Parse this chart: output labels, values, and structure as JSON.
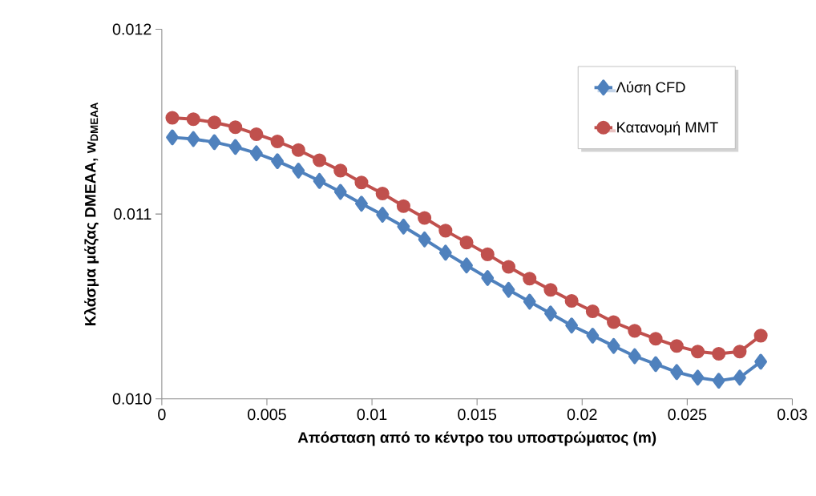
{
  "chart_data": {
    "type": "line",
    "xlabel": "Απόσταση από το κέντρο του υποστρώματος (m)",
    "ylabel": "Κλάσμα μάζας DMEAA, w$_{DMEAA}$",
    "x": [
      0.0005,
      0.0015,
      0.0025,
      0.0035,
      0.0045,
      0.0055,
      0.0065,
      0.0075,
      0.0085,
      0.0095,
      0.0105,
      0.0115,
      0.0125,
      0.0135,
      0.0145,
      0.0155,
      0.0165,
      0.0175,
      0.0185,
      0.0195,
      0.0205,
      0.0215,
      0.0225,
      0.0235,
      0.0245,
      0.0255,
      0.0265,
      0.0275,
      0.0285
    ],
    "series": [
      {
        "name": "Λύση CFD",
        "color": "#4f81bd",
        "marker": "diamond",
        "values": [
          0.011415,
          0.011406,
          0.011389,
          0.011363,
          0.011329,
          0.011286,
          0.011235,
          0.011179,
          0.01112,
          0.011056,
          0.010996,
          0.010932,
          0.010863,
          0.010791,
          0.010722,
          0.010654,
          0.01059,
          0.010526,
          0.010462,
          0.010397,
          0.010342,
          0.010286,
          0.010231,
          0.010188,
          0.010145,
          0.010115,
          0.010098,
          0.010115,
          0.010201
        ]
      },
      {
        "name": "Κατανομή MMT",
        "color": "#c0504d",
        "marker": "circle",
        "values": [
          0.011521,
          0.011513,
          0.011496,
          0.01147,
          0.011432,
          0.011393,
          0.011346,
          0.011291,
          0.011235,
          0.011171,
          0.011111,
          0.011043,
          0.010979,
          0.01091,
          0.010846,
          0.010782,
          0.010714,
          0.01065,
          0.01059,
          0.01053,
          0.010474,
          0.010415,
          0.010368,
          0.010325,
          0.010286,
          0.010256,
          0.010244,
          0.010256,
          0.010342
        ]
      }
    ],
    "xlim": [
      0,
      0.03
    ],
    "xticks": [
      0,
      0.005,
      0.01,
      0.015,
      0.02,
      0.025,
      0.03
    ],
    "ylim": [
      0.01,
      0.012
    ],
    "yticks": [
      {
        "value": 0.01,
        "label": "0.010"
      },
      0.011,
      0.012
    ],
    "grid": false,
    "legend": "top right",
    "line_style": "solid"
  }
}
